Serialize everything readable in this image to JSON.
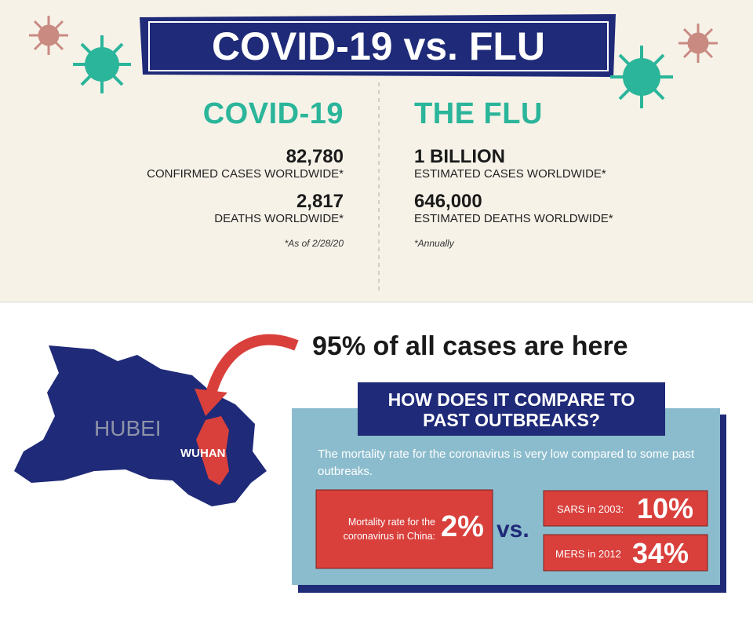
{
  "header": {
    "title": "COVID-19 vs. FLU"
  },
  "covid": {
    "heading": "COVID-19",
    "cases": "82,780",
    "cases_label": "CONFIRMED CASES WORLDWIDE*",
    "deaths": "2,817",
    "deaths_label": "DEATHS WORLDWIDE*",
    "note": "*As of 2/28/20"
  },
  "flu": {
    "heading": "THE FLU",
    "cases": "1 BILLION",
    "cases_label": "ESTIMATED CASES WORLDWIDE*",
    "deaths": "646,000",
    "deaths_label": "ESTIMATED DEATHS WORLDWIDE*",
    "note": "*Annually"
  },
  "map": {
    "region": "HUBEI",
    "city": "WUHAN",
    "callout": "95% of all cases are here"
  },
  "compare": {
    "heading_lines": [
      "HOW DOES IT COMPARE TO",
      "PAST OUTBREAKS?"
    ],
    "description": "The mortality rate for the coronavirus is very low compared to some past outbreaks.",
    "china": {
      "label": "Mortality rate for the coronavirus in China:",
      "value": "2%"
    },
    "vs": "vs.",
    "sars": {
      "label": "SARS in 2003:",
      "value": "10%"
    },
    "mers": {
      "label": "MERS in 2012",
      "value": "34%"
    }
  }
}
